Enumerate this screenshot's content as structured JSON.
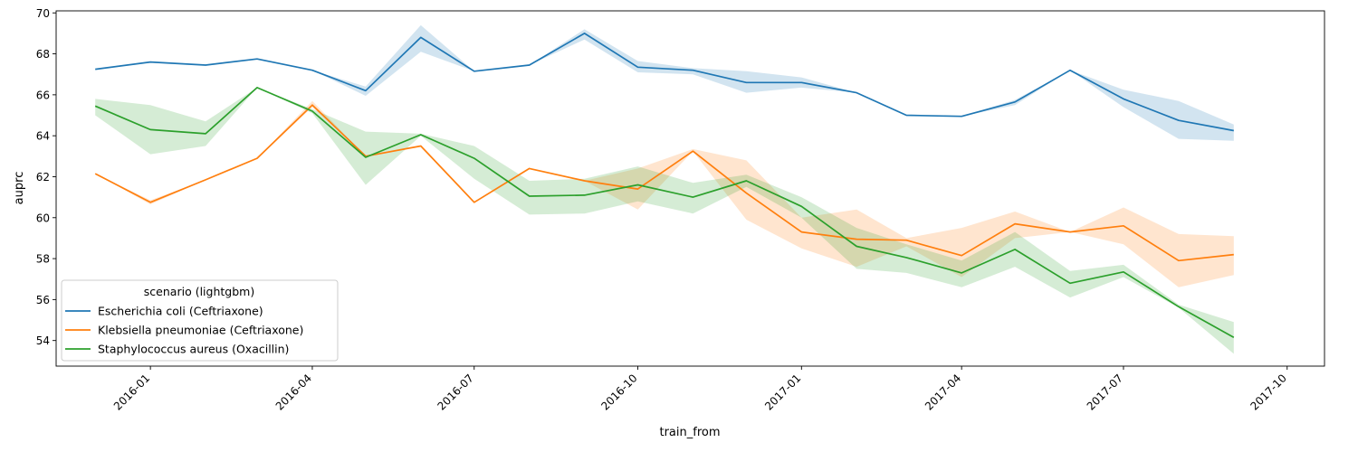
{
  "chart_data": {
    "type": "line",
    "xlabel": "train_from",
    "ylabel": "auprc",
    "x_axis": "date",
    "xlim": [
      "2015-11-09",
      "2017-10-22"
    ],
    "ylim": [
      52.75,
      70.1
    ],
    "x_ticks": [
      "2016-01",
      "2016-04",
      "2016-07",
      "2016-10",
      "2017-01",
      "2017-04",
      "2017-07",
      "2017-10"
    ],
    "y_ticks": [
      54,
      56,
      58,
      60,
      62,
      64,
      66,
      68,
      70
    ],
    "grid": false,
    "legend": {
      "title": "scenario (lightgbm)",
      "placement": "bottom-left"
    },
    "x": [
      "2015-12-01",
      "2016-01-01",
      "2016-02-01",
      "2016-03-01",
      "2016-04-01",
      "2016-05-01",
      "2016-06-01",
      "2016-07-01",
      "2016-08-01",
      "2016-09-01",
      "2016-10-01",
      "2016-11-01",
      "2016-12-01",
      "2017-01-01",
      "2017-02-01",
      "2017-03-01",
      "2017-04-01",
      "2017-05-01",
      "2017-06-01",
      "2017-07-01",
      "2017-08-01",
      "2017-09-01"
    ],
    "series": [
      {
        "name": "Escherichia coli (Ceftriaxone)",
        "color": "#1f77b4",
        "values": [
          67.25,
          67.6,
          67.45,
          67.75,
          67.2,
          66.2,
          68.8,
          67.15,
          67.45,
          69.0,
          67.35,
          67.2,
          66.6,
          66.6,
          66.1,
          65.0,
          64.95,
          65.65,
          67.2,
          65.8,
          64.75,
          64.25
        ],
        "ci_low": [
          67.25,
          67.6,
          67.45,
          67.75,
          67.2,
          65.95,
          68.1,
          67.15,
          67.45,
          68.7,
          67.1,
          67.0,
          66.1,
          66.35,
          66.1,
          65.0,
          64.95,
          65.5,
          67.2,
          65.4,
          63.85,
          63.75
        ],
        "ci_high": [
          67.25,
          67.6,
          67.45,
          67.75,
          67.2,
          66.4,
          69.4,
          67.15,
          67.45,
          69.2,
          67.65,
          67.3,
          67.15,
          66.85,
          66.1,
          65.0,
          64.95,
          65.75,
          67.2,
          66.25,
          65.7,
          64.55
        ]
      },
      {
        "name": "Klebsiella pneumoniae (Ceftriaxone)",
        "color": "#ff7f0e",
        "values": [
          62.15,
          60.75,
          61.85,
          62.9,
          65.5,
          63.0,
          63.5,
          60.75,
          62.4,
          61.8,
          61.4,
          63.25,
          61.2,
          59.3,
          58.95,
          58.9,
          58.15,
          59.7,
          59.3,
          59.6,
          57.9,
          58.2
        ],
        "ci_low": [
          62.15,
          60.65,
          61.85,
          62.9,
          65.4,
          63.0,
          63.5,
          60.75,
          62.4,
          61.8,
          60.4,
          63.25,
          59.9,
          58.5,
          57.6,
          58.6,
          57.1,
          59.0,
          59.3,
          58.7,
          56.6,
          57.2
        ],
        "ci_high": [
          62.15,
          60.85,
          61.85,
          62.9,
          65.7,
          63.0,
          63.5,
          60.75,
          62.4,
          61.8,
          62.4,
          63.35,
          62.8,
          60.0,
          60.4,
          59.0,
          59.5,
          60.3,
          59.3,
          60.5,
          59.2,
          59.1
        ]
      },
      {
        "name": "Staphylococcus aureus (Oxacillin)",
        "color": "#2ca02c",
        "values": [
          65.45,
          64.3,
          64.1,
          66.35,
          65.2,
          62.95,
          64.05,
          62.9,
          61.05,
          61.1,
          61.6,
          61.0,
          61.8,
          60.55,
          58.6,
          58.05,
          57.3,
          58.45,
          56.8,
          57.35,
          55.65,
          54.15
        ],
        "ci_low": [
          65.0,
          63.1,
          63.5,
          66.35,
          65.1,
          61.6,
          64.0,
          61.9,
          60.15,
          60.2,
          60.8,
          60.2,
          61.5,
          60.0,
          57.5,
          57.3,
          56.6,
          57.6,
          56.1,
          57.1,
          55.6,
          53.35
        ],
        "ci_high": [
          65.8,
          65.5,
          64.7,
          66.35,
          65.3,
          64.2,
          64.1,
          63.5,
          61.8,
          61.9,
          62.5,
          61.7,
          62.1,
          61.0,
          59.5,
          58.7,
          57.9,
          59.3,
          57.4,
          57.7,
          55.75,
          54.9
        ]
      }
    ]
  }
}
